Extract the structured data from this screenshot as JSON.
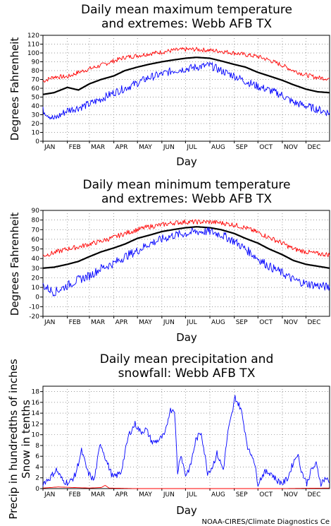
{
  "credit": "NOAA-CIRES/Climate Diagnostics Ce",
  "colors": {
    "mean": "#000000",
    "high": "#ff0000",
    "low": "#0000ff",
    "grid": "#777777"
  },
  "chart_data": [
    {
      "id": "tmax",
      "type": "line",
      "title_lines": [
        "Daily mean maximum temperature",
        "and extremes: Webb AFB TX"
      ],
      "xlabel": "Day",
      "ylabel": "Degrees Fahrenheit",
      "ylim": [
        0,
        120
      ],
      "yticks": [
        0,
        10,
        20,
        30,
        40,
        50,
        60,
        70,
        80,
        90,
        100,
        110,
        120
      ],
      "xlim": [
        1,
        365
      ],
      "month_labels": [
        "JAN",
        "FEB",
        "MAR",
        "APR",
        "MAY",
        "JUN",
        "JUL",
        "AUG",
        "SEP",
        "OCT",
        "NOV",
        "DEC"
      ],
      "month_days": [
        1,
        32,
        60,
        91,
        121,
        152,
        182,
        213,
        244,
        274,
        305,
        335
      ],
      "grid": true,
      "series": [
        {
          "role": "high",
          "color": "#ff0000",
          "x": [
            1,
            15,
            32,
            46,
            60,
            75,
            91,
            105,
            121,
            135,
            152,
            166,
            182,
            196,
            213,
            227,
            244,
            258,
            274,
            288,
            305,
            319,
            335,
            350,
            365
          ],
          "y": [
            68,
            73,
            73,
            78,
            82,
            86,
            91,
            95,
            97,
            99,
            101,
            103,
            104,
            104,
            103,
            102,
            100,
            98,
            96,
            92,
            86,
            80,
            75,
            72,
            71
          ]
        },
        {
          "role": "mean",
          "color": "#000000",
          "x": [
            1,
            15,
            32,
            46,
            60,
            75,
            91,
            105,
            121,
            135,
            152,
            166,
            182,
            196,
            213,
            227,
            244,
            258,
            274,
            288,
            305,
            319,
            335,
            350,
            365
          ],
          "y": [
            53,
            55,
            61,
            58,
            65,
            70,
            74,
            80,
            84,
            87,
            90,
            92,
            94,
            95,
            94,
            91,
            87,
            84,
            78,
            74,
            69,
            64,
            59,
            56,
            55
          ]
        },
        {
          "role": "low",
          "color": "#0000ff",
          "x": [
            1,
            15,
            32,
            46,
            60,
            75,
            91,
            105,
            121,
            135,
            152,
            166,
            182,
            196,
            213,
            227,
            244,
            258,
            274,
            288,
            305,
            319,
            335,
            350,
            365
          ],
          "y": [
            35,
            25,
            35,
            38,
            42,
            48,
            55,
            60,
            66,
            72,
            76,
            80,
            82,
            84,
            86,
            80,
            74,
            68,
            62,
            58,
            52,
            44,
            40,
            36,
            32
          ]
        }
      ]
    },
    {
      "id": "tmin",
      "type": "line",
      "title_lines": [
        "Daily mean minimum temperature",
        "and extremes: Webb AFB TX"
      ],
      "xlabel": "Day",
      "ylabel": "Degrees Fahrenheit",
      "ylim": [
        -20,
        90
      ],
      "yticks": [
        -20,
        -10,
        0,
        10,
        20,
        30,
        40,
        50,
        60,
        70,
        80,
        90
      ],
      "xlim": [
        1,
        365
      ],
      "month_labels": [
        "JAN",
        "FEB",
        "MAR",
        "APR",
        "MAY",
        "JUN",
        "JUL",
        "AUG",
        "SEP",
        "OCT",
        "NOV",
        "DEC"
      ],
      "month_days": [
        1,
        32,
        60,
        91,
        121,
        152,
        182,
        213,
        244,
        274,
        305,
        335
      ],
      "grid": true,
      "series": [
        {
          "role": "high",
          "color": "#ff0000",
          "x": [
            1,
            15,
            32,
            46,
            60,
            75,
            91,
            105,
            121,
            135,
            152,
            166,
            182,
            196,
            213,
            227,
            244,
            258,
            274,
            288,
            305,
            319,
            335,
            350,
            365
          ],
          "y": [
            43,
            46,
            50,
            52,
            55,
            58,
            62,
            66,
            70,
            73,
            75,
            77,
            78,
            78,
            78,
            77,
            75,
            72,
            67,
            62,
            56,
            50,
            47,
            45,
            44
          ]
        },
        {
          "role": "mean",
          "color": "#000000",
          "x": [
            1,
            15,
            32,
            46,
            60,
            75,
            91,
            105,
            121,
            135,
            152,
            166,
            182,
            196,
            213,
            227,
            244,
            258,
            274,
            288,
            305,
            319,
            335,
            350,
            365
          ],
          "y": [
            30,
            31,
            34,
            37,
            42,
            47,
            51,
            55,
            61,
            64,
            68,
            70,
            72,
            73,
            72,
            70,
            66,
            61,
            56,
            50,
            44,
            38,
            34,
            32,
            30
          ]
        },
        {
          "role": "low",
          "color": "#0000ff",
          "x": [
            1,
            15,
            32,
            46,
            60,
            75,
            91,
            105,
            121,
            135,
            152,
            166,
            182,
            196,
            213,
            227,
            244,
            258,
            274,
            288,
            305,
            319,
            335,
            350,
            365
          ],
          "y": [
            12,
            5,
            12,
            18,
            22,
            30,
            35,
            42,
            48,
            55,
            60,
            64,
            66,
            68,
            68,
            65,
            58,
            50,
            40,
            32,
            25,
            18,
            14,
            12,
            10
          ]
        }
      ]
    },
    {
      "id": "precip",
      "type": "line",
      "title_lines": [
        "Daily mean precipitation and",
        "snowfall: Webb AFB TX"
      ],
      "xlabel": "Day",
      "ylabel_lines": [
        "Precip in hundredths of inches",
        "Snow in tenths"
      ],
      "ylim": [
        0,
        19
      ],
      "yticks": [
        0,
        2,
        4,
        6,
        8,
        10,
        12,
        14,
        16,
        18
      ],
      "xlim": [
        1,
        365
      ],
      "month_labels": [
        "JAN",
        "FEB",
        "MAR",
        "APR",
        "MAY",
        "JUN",
        "JUL",
        "AUG",
        "SEP",
        "OCT",
        "NOV",
        "DEC"
      ],
      "month_days": [
        1,
        32,
        60,
        91,
        121,
        152,
        182,
        213,
        244,
        274,
        305,
        335
      ],
      "grid": true,
      "series": [
        {
          "role": "precip",
          "color": "#0000ff",
          "x": [
            1,
            10,
            18,
            26,
            34,
            42,
            50,
            58,
            66,
            74,
            82,
            90,
            100,
            110,
            118,
            125,
            132,
            140,
            148,
            156,
            162,
            168,
            172,
            176,
            182,
            188,
            195,
            202,
            210,
            216,
            222,
            230,
            236,
            242,
            245,
            248,
            252,
            256,
            262,
            268,
            274,
            282,
            290,
            298,
            306,
            312,
            318,
            324,
            330,
            336,
            342,
            348,
            354,
            360,
            365
          ],
          "y": [
            1.0,
            2.0,
            3.5,
            1.5,
            1.0,
            2.5,
            7.0,
            3.0,
            1.5,
            8.5,
            5.0,
            2.0,
            3.0,
            10.0,
            12.0,
            10.5,
            11.0,
            8.5,
            9.0,
            10.0,
            14.5,
            14.8,
            3.0,
            6.5,
            2.5,
            4.0,
            9.0,
            10.5,
            3.0,
            4.0,
            6.5,
            3.5,
            10.5,
            14.5,
            17.0,
            16.0,
            15.0,
            12.0,
            7.0,
            6.0,
            1.0,
            3.0,
            3.0,
            1.5,
            1.0,
            2.0,
            4.5,
            6.5,
            3.0,
            1.0,
            3.5,
            4.5,
            1.0,
            2.0,
            1.0
          ]
        },
        {
          "role": "snow",
          "color": "#ff0000",
          "x": [
            1,
            20,
            40,
            60,
            75,
            80,
            85,
            120,
            200,
            300,
            365
          ],
          "y": [
            0.1,
            0.3,
            0.2,
            0.1,
            0.2,
            0.6,
            0.1,
            0,
            0,
            0,
            0.1
          ]
        }
      ]
    }
  ]
}
